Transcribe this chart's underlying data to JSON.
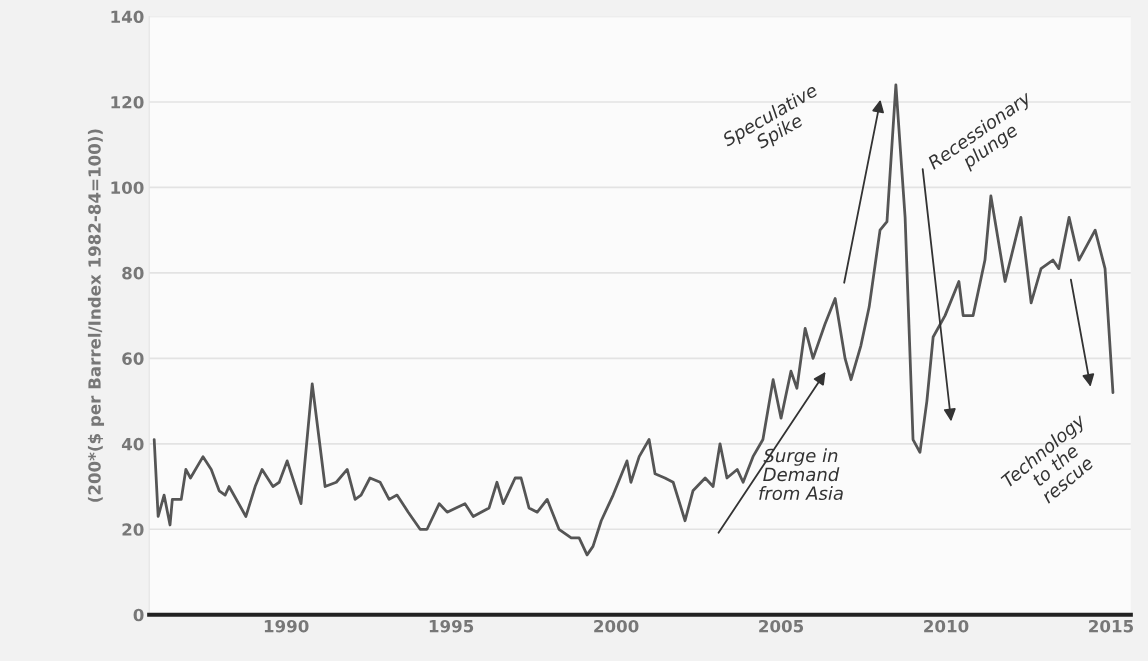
{
  "chart_data": {
    "type": "line",
    "ylabel": "(200*($ per Barrel/Index 1982-84=100))",
    "x": [
      1986.0,
      1986.12,
      1986.3,
      1986.48,
      1986.55,
      1986.82,
      1986.96,
      1987.1,
      1987.48,
      1987.73,
      1987.97,
      1988.15,
      1988.27,
      1988.78,
      1989.06,
      1989.27,
      1989.6,
      1989.79,
      1990.03,
      1990.45,
      1990.79,
      1991.18,
      1991.52,
      1991.85,
      1992.09,
      1992.27,
      1992.54,
      1992.85,
      1993.12,
      1993.36,
      1993.7,
      1994.06,
      1994.27,
      1994.64,
      1994.88,
      1995.42,
      1995.67,
      1996.15,
      1996.39,
      1996.58,
      1996.94,
      1997.12,
      1997.36,
      1997.61,
      1997.91,
      1998.27,
      1998.64,
      1998.88,
      1999.12,
      1999.3,
      1999.55,
      1999.91,
      2000.33,
      2000.45,
      2000.7,
      2001.0,
      2001.18,
      2001.48,
      2001.73,
      2002.09,
      2002.33,
      2002.7,
      2002.94,
      2003.15,
      2003.36,
      2003.67,
      2003.85,
      2004.15,
      2004.45,
      2004.76,
      2005.0,
      2005.3,
      2005.48,
      2005.73,
      2005.97,
      2006.33,
      2006.64,
      2006.94,
      2007.12,
      2007.42,
      2007.67,
      2008.0,
      2008.21,
      2008.48,
      2008.76,
      2009.0,
      2009.21,
      2009.42,
      2009.61,
      2009.97,
      2010.39,
      2010.52,
      2010.82,
      2011.18,
      2011.36,
      2011.79,
      2012.27,
      2012.58,
      2012.88,
      2013.24,
      2013.42,
      2013.73,
      2014.03,
      2014.52,
      2014.82,
      2015.06
    ],
    "series": [
      {
        "color": "#555555",
        "values": [
          41,
          23,
          28,
          21,
          27,
          27,
          34,
          32,
          37,
          34,
          29,
          28,
          30,
          23,
          30,
          34,
          30,
          31,
          36,
          26,
          54,
          30,
          31,
          34,
          27,
          28,
          32,
          31,
          27,
          28,
          24,
          20,
          20,
          26,
          24,
          26,
          23,
          25,
          31,
          26,
          32,
          32,
          25,
          24,
          27,
          20,
          18,
          18,
          14,
          16,
          22,
          28,
          36,
          31,
          37,
          41,
          33,
          32,
          31,
          22,
          29,
          32,
          30,
          40,
          32,
          34,
          31,
          37,
          41,
          55,
          46,
          57,
          53,
          67,
          60,
          68,
          74,
          60,
          55,
          63,
          72,
          90,
          92,
          124,
          93,
          41,
          38,
          50,
          65,
          70,
          78,
          70,
          70,
          83,
          98,
          78,
          93,
          73,
          81,
          83,
          81,
          93,
          83,
          90,
          81,
          52
        ]
      }
    ],
    "xlim": [
      1985.85,
      2015.6
    ],
    "xticks": [
      1990,
      1995,
      2000,
      2005,
      2010,
      2015
    ],
    "ylim": [
      0,
      140
    ],
    "yticks": [
      0,
      20,
      40,
      60,
      80,
      100,
      120,
      140
    ],
    "grid": "y",
    "annotations": [
      "Surge in\nDemand\nfrom Asia",
      "Speculative\nSpike",
      "Recessionary\nplunge",
      "Technology\nto the\nrescue"
    ]
  }
}
